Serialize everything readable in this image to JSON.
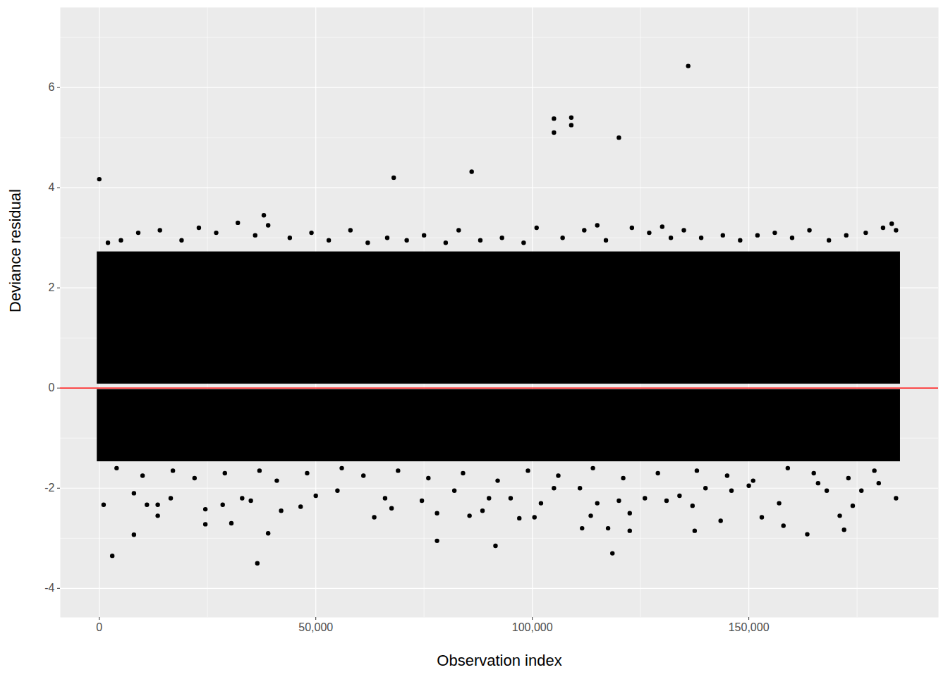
{
  "chart_data": {
    "type": "scatter",
    "x_label": "Observation index",
    "y_label": "Deviance residual",
    "xlim": [
      -9000,
      193800
    ],
    "ylim": [
      -4.58,
      7.6
    ],
    "xticks": [
      0,
      {
        "value": 50000,
        "label": "50,000"
      },
      {
        "value": 100000,
        "label": "100,000"
      },
      {
        "value": 150000,
        "label": "150,000"
      }
    ],
    "yticks": [
      -4,
      -2,
      0,
      2,
      4,
      6
    ],
    "grid": true,
    "color": "#000000",
    "marker": "circle",
    "bands": [
      {
        "x": [
          -500,
          185000
        ],
        "y": [
          0.08,
          2.72
        ]
      },
      {
        "x": [
          -500,
          185000
        ],
        "y": [
          -1.47,
          -0.03
        ]
      }
    ],
    "reference_line": {
      "y": 0,
      "color": "#ff0000"
    },
    "x": [
      0,
      68000,
      86000,
      105000,
      105000,
      109000,
      109000,
      120000,
      136000,
      38000,
      32000,
      115000,
      130000,
      183000,
      3000,
      36500,
      78000,
      91500,
      118500,
      8000,
      39000,
      137500,
      163500,
      172000,
      1000,
      24500,
      24500,
      30500,
      28500,
      33000,
      35000,
      42000,
      46500,
      63500,
      67500,
      85500,
      88500,
      97000,
      100500,
      111500,
      113500,
      117500,
      122500,
      122500,
      143500,
      153000,
      158000,
      171000,
      184000,
      13500,
      13500,
      11000,
      8000,
      16500,
      50000,
      55000,
      66000,
      74500,
      78000,
      82000,
      90000,
      95000,
      102000,
      105000,
      111000,
      115000,
      120000,
      126000,
      131000,
      134000,
      137000,
      140000,
      146000,
      150000,
      157000,
      166000,
      168000,
      174000,
      176000,
      180000,
      2000,
      5000,
      9000,
      14000,
      19000,
      23000,
      27000,
      36000,
      39000,
      44000,
      49000,
      53000,
      58000,
      62000,
      66500,
      71000,
      75000,
      80000,
      83000,
      88000,
      93000,
      98000,
      101000,
      107000,
      112000,
      117000,
      123000,
      127000,
      132000,
      135000,
      139000,
      144000,
      148000,
      152000,
      156000,
      160000,
      164000,
      168500,
      172500,
      177000,
      181000,
      184000,
      4000,
      10000,
      17000,
      22000,
      29000,
      37000,
      41000,
      48000,
      56000,
      61000,
      69000,
      76000,
      84000,
      92000,
      99000,
      106000,
      114000,
      121000,
      129000,
      138000,
      145000,
      151000,
      159000,
      165000,
      173000,
      179000
    ],
    "values": [
      4.17,
      4.2,
      4.32,
      5.38,
      5.1,
      5.4,
      5.25,
      5.0,
      6.43,
      3.45,
      3.3,
      3.25,
      3.22,
      3.28,
      -3.35,
      -3.5,
      -3.05,
      -3.15,
      -3.3,
      -2.93,
      -2.9,
      -2.85,
      -2.92,
      -2.83,
      -2.33,
      -2.42,
      -2.72,
      -2.7,
      -2.33,
      -2.2,
      -2.25,
      -2.45,
      -2.37,
      -2.58,
      -2.4,
      -2.55,
      -2.45,
      -2.6,
      -2.58,
      -2.8,
      -2.55,
      -2.8,
      -2.85,
      -2.5,
      -2.65,
      -2.58,
      -2.75,
      -2.55,
      -2.2,
      -2.55,
      -2.33,
      -2.33,
      -2.1,
      -2.2,
      -2.15,
      -2.05,
      -2.2,
      -2.25,
      -2.5,
      -2.05,
      -2.2,
      -2.2,
      -2.3,
      -2.0,
      -2.0,
      -2.3,
      -2.25,
      -2.2,
      -2.25,
      -2.15,
      -2.35,
      -2.0,
      -2.05,
      -1.95,
      -2.3,
      -1.9,
      -2.05,
      -2.35,
      -2.05,
      -1.9,
      2.9,
      2.95,
      3.1,
      3.15,
      2.95,
      3.2,
      3.1,
      3.05,
      3.25,
      3.0,
      3.1,
      2.95,
      3.15,
      2.9,
      3.0,
      2.95,
      3.05,
      2.9,
      3.15,
      2.95,
      3.0,
      2.9,
      3.2,
      3.0,
      3.15,
      2.95,
      3.2,
      3.1,
      3.0,
      3.15,
      3.0,
      3.05,
      2.95,
      3.05,
      3.1,
      3.0,
      3.15,
      2.95,
      3.05,
      3.1,
      3.2,
      3.15,
      -1.6,
      -1.75,
      -1.65,
      -1.8,
      -1.7,
      -1.65,
      -1.85,
      -1.7,
      -1.6,
      -1.75,
      -1.65,
      -1.8,
      -1.7,
      -1.85,
      -1.65,
      -1.75,
      -1.6,
      -1.8,
      -1.7,
      -1.65,
      -1.75,
      -1.85,
      -1.6,
      -1.7,
      -1.8,
      -1.65
    ]
  }
}
